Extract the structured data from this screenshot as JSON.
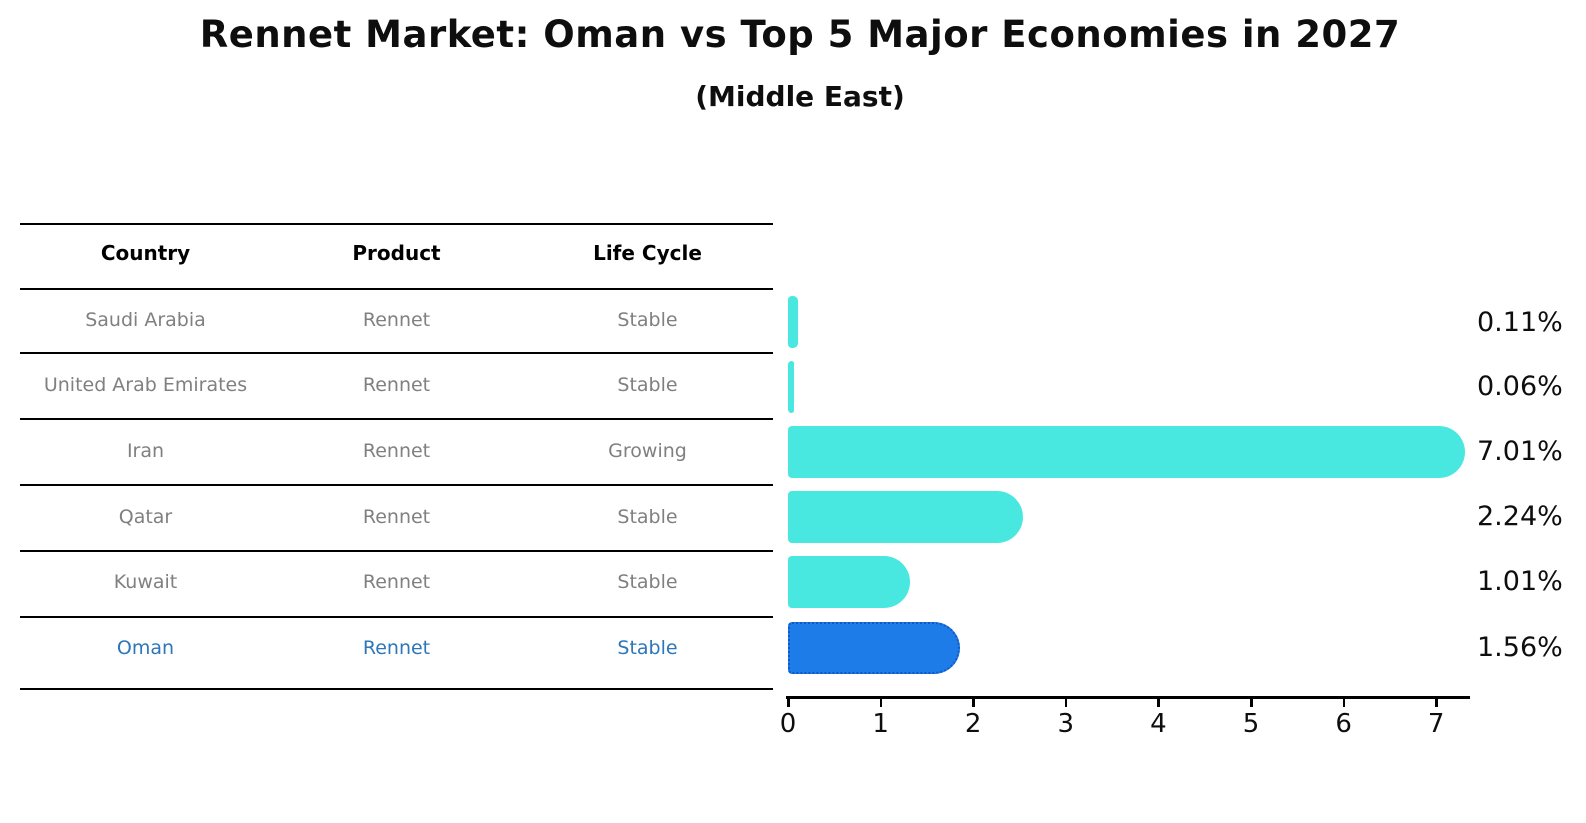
{
  "title": "Rennet Market: Oman vs Top 5 Major Economies in 2027",
  "subtitle": "(Middle East)",
  "table": {
    "headers": [
      "Country",
      "Product",
      "Life Cycle"
    ],
    "rows": [
      {
        "country": "Saudi Arabia",
        "product": "Rennet",
        "life_cycle": "Stable",
        "highlight": false
      },
      {
        "country": "United Arab Emirates",
        "product": "Rennet",
        "life_cycle": "Stable",
        "highlight": false
      },
      {
        "country": "Iran",
        "product": "Rennet",
        "life_cycle": "Growing",
        "highlight": false
      },
      {
        "country": "Qatar",
        "product": "Rennet",
        "life_cycle": "Stable",
        "highlight": false
      },
      {
        "country": "Kuwait",
        "product": "Rennet",
        "life_cycle": "Stable",
        "highlight": false
      },
      {
        "country": "Oman",
        "product": "Rennet",
        "life_cycle": "Stable",
        "highlight": true
      }
    ]
  },
  "chart_data": {
    "type": "bar",
    "orientation": "horizontal",
    "title": "Rennet Market: Oman vs Top 5 Major Economies in 2027",
    "subtitle": "(Middle East)",
    "categories": [
      "Saudi Arabia",
      "United Arab Emirates",
      "Iran",
      "Qatar",
      "Kuwait",
      "Oman"
    ],
    "values": [
      0.11,
      0.06,
      7.01,
      2.24,
      1.01,
      1.56
    ],
    "value_labels": [
      "0.11%",
      "0.06%",
      "7.01%",
      "2.24%",
      "1.01%",
      "1.56%"
    ],
    "units": "%",
    "x_ticks": [
      0,
      1,
      2,
      3,
      4,
      5,
      6,
      7
    ],
    "xlim": [
      0,
      7.35
    ],
    "xlabel": "",
    "ylabel": "",
    "grid": false,
    "legend": false,
    "highlight_index": 5,
    "bar_color": "#48e8e0",
    "highlight_color": "#1e7ce8",
    "highlight_border_color": "#1058c8",
    "axis_color": "#000000",
    "row_text_color": "#808080",
    "highlight_text_color": "#2d76ba"
  }
}
